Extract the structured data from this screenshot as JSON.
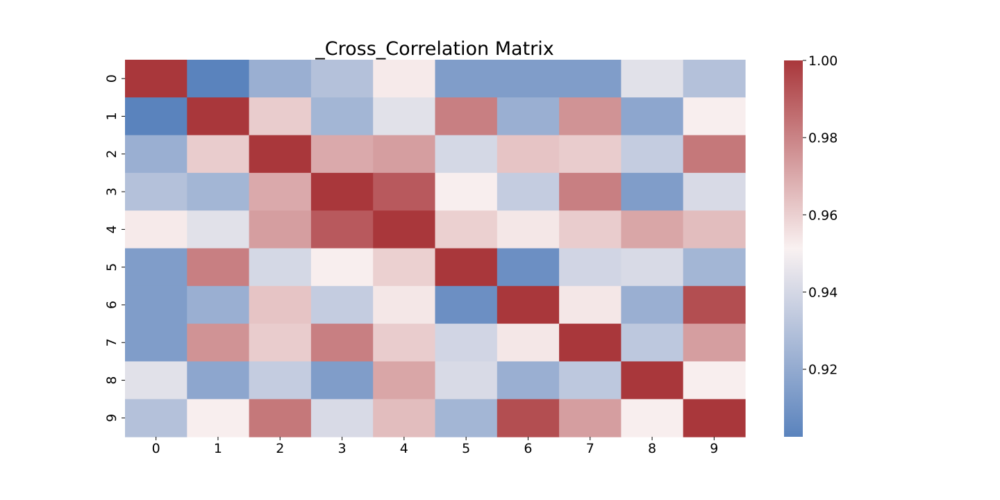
{
  "chart_data": {
    "type": "heatmap",
    "title": "_Cross_Correlation Matrix",
    "xlabel": "",
    "ylabel": "",
    "x_categories": [
      "0",
      "1",
      "2",
      "3",
      "4",
      "5",
      "6",
      "7",
      "8",
      "9"
    ],
    "y_categories": [
      "0",
      "1",
      "2",
      "3",
      "4",
      "5",
      "6",
      "7",
      "8",
      "9"
    ],
    "values": [
      [
        1.0,
        0.902,
        0.922,
        0.93,
        0.953,
        0.914,
        0.914,
        0.914,
        0.944,
        0.93
      ],
      [
        0.902,
        1.0,
        0.961,
        0.925,
        0.944,
        0.981,
        0.922,
        0.976,
        0.918,
        0.952
      ],
      [
        0.922,
        0.961,
        1.0,
        0.97,
        0.973,
        0.94,
        0.963,
        0.961,
        0.935,
        0.983
      ],
      [
        0.93,
        0.925,
        0.97,
        1.0,
        0.991,
        0.952,
        0.935,
        0.981,
        0.914,
        0.941
      ],
      [
        0.953,
        0.944,
        0.973,
        0.991,
        1.0,
        0.96,
        0.954,
        0.961,
        0.971,
        0.965
      ],
      [
        0.914,
        0.981,
        0.94,
        0.952,
        0.96,
        1.0,
        0.908,
        0.939,
        0.941,
        0.925
      ],
      [
        0.914,
        0.922,
        0.963,
        0.935,
        0.954,
        0.908,
        1.0,
        0.954,
        0.922,
        0.994
      ],
      [
        0.914,
        0.976,
        0.961,
        0.981,
        0.961,
        0.939,
        0.954,
        1.0,
        0.933,
        0.973
      ],
      [
        0.944,
        0.918,
        0.935,
        0.914,
        0.971,
        0.941,
        0.922,
        0.933,
        1.0,
        0.952
      ],
      [
        0.93,
        0.952,
        0.983,
        0.941,
        0.965,
        0.925,
        0.994,
        0.973,
        0.952,
        1.0
      ]
    ],
    "colorbar": {
      "vmin": 0.9025,
      "vmax": 1.0,
      "ticks": [
        0.92,
        0.94,
        0.96,
        0.98,
        1.0
      ],
      "tick_labels": [
        "0.92",
        "0.94",
        "0.96",
        "0.98",
        "1.00"
      ],
      "colormap": "vlag",
      "color_stops": [
        "#5a83bd",
        "#f9f1f1",
        "#a9373b"
      ]
    },
    "grid": false,
    "legend": "colorbar-right"
  }
}
